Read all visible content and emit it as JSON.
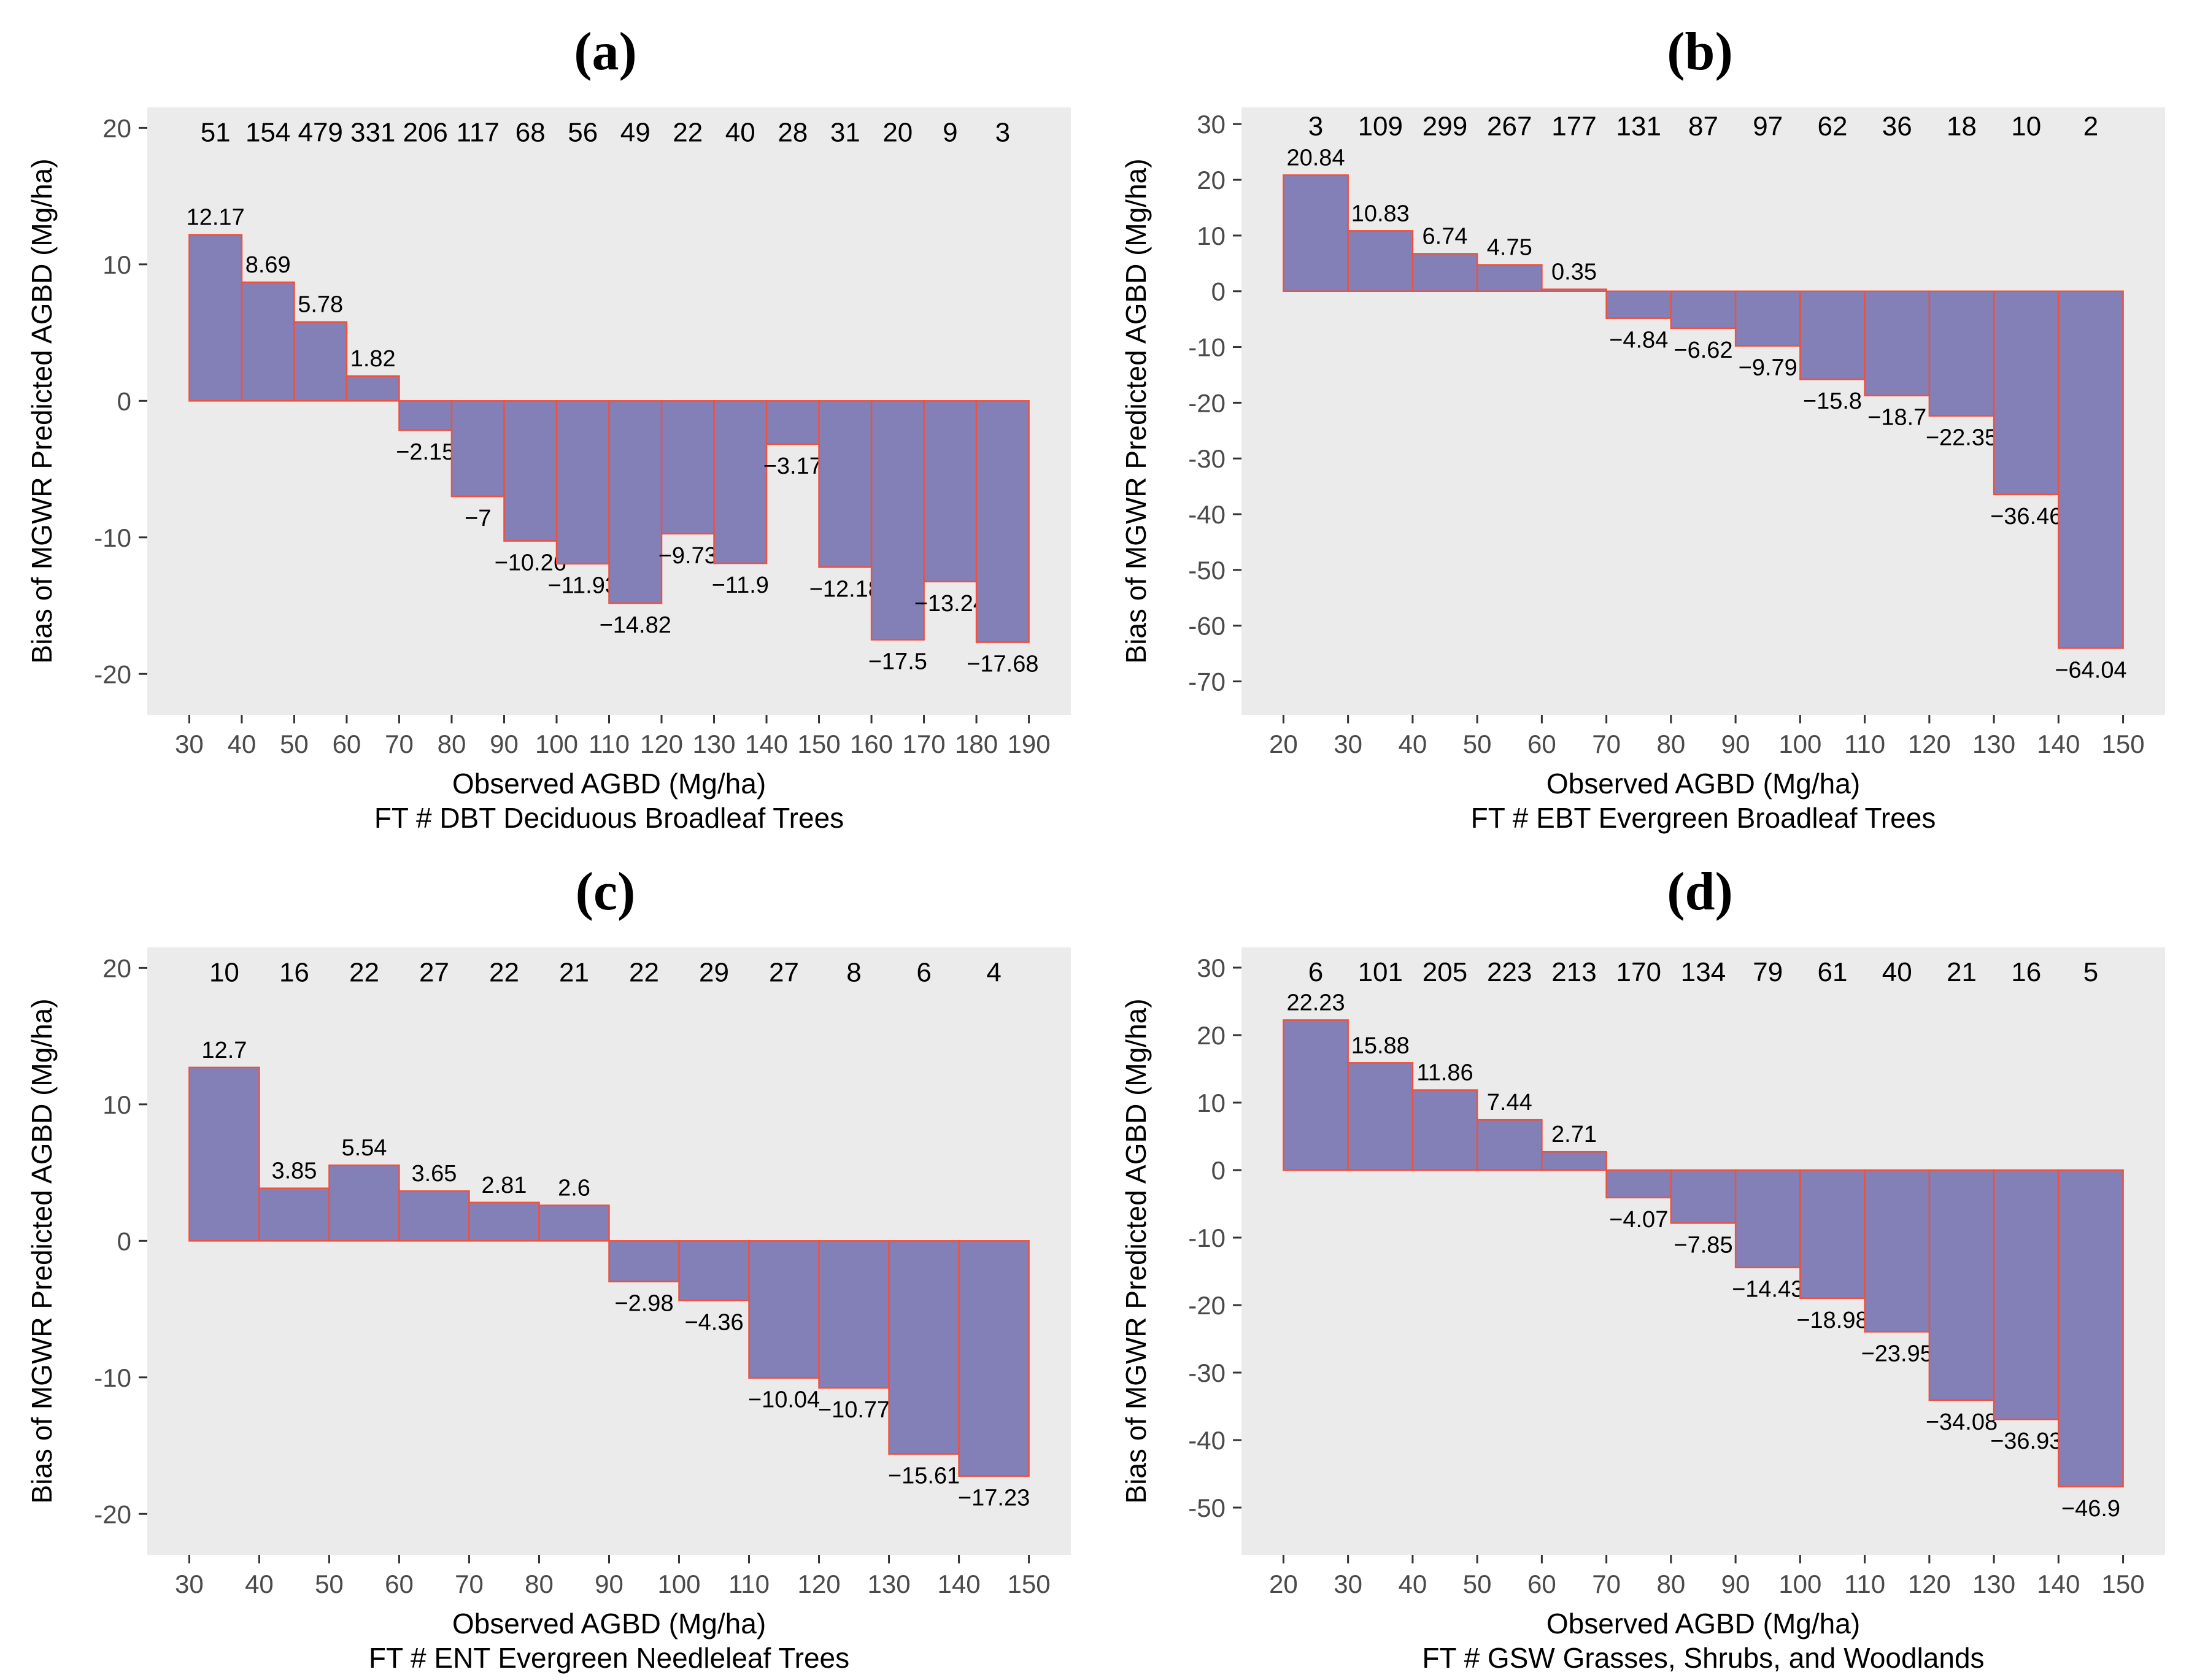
{
  "colors": {
    "bar_fill": "#8380B8",
    "bar_stroke": "#F0503C",
    "panel_bg": "#EBEBEB",
    "axis_text": "#4A4A4A",
    "tick": "#333333",
    "label_text": "#000000"
  },
  "chart_data": [
    {
      "type": "bar",
      "panel_label": "(a)",
      "ylabel": "Bias of MGWR Predicted AGBD (Mg/ha)",
      "xlabel": "Observed AGBD (Mg/ha)",
      "xlabel2": "FT # DBT Deciduous Broadleaf Trees",
      "bin_start": 30,
      "bin_width": 10,
      "bin_edges": [
        30,
        40,
        50,
        60,
        70,
        80,
        90,
        100,
        110,
        120,
        130,
        140,
        150,
        160,
        170,
        180,
        190
      ],
      "counts": [
        51,
        154,
        479,
        331,
        206,
        117,
        68,
        56,
        49,
        22,
        40,
        28,
        31,
        20,
        9,
        3
      ],
      "values": [
        12.17,
        8.69,
        5.78,
        1.82,
        -2.15,
        -7,
        -10.26,
        -11.93,
        -14.82,
        -9.73,
        -11.9,
        -3.17,
        -12.18,
        -17.5,
        -13.24,
        -17.68
      ],
      "value_labels": [
        "12.17",
        "8.69",
        "5.78",
        "1.82",
        "−2.15",
        "−7",
        "−10.26",
        "−11.93",
        "−14.82",
        "−9.73",
        "−11.9",
        "−3.17",
        "−12.18",
        "−17.5",
        "−13.24",
        "−17.68"
      ],
      "x_ticks": [
        30,
        40,
        50,
        60,
        70,
        80,
        90,
        100,
        110,
        120,
        130,
        140,
        150,
        160,
        170,
        180,
        190
      ],
      "y_ticks": [
        20,
        10,
        0,
        -10,
        -20
      ],
      "x_domain": [
        22,
        198
      ],
      "y_domain": [
        -23,
        21.5
      ],
      "counts_y": 19,
      "grid": false
    },
    {
      "type": "bar",
      "panel_label": "(b)",
      "ylabel": "Bias of MGWR Predicted AGBD (Mg/ha)",
      "xlabel": "Observed AGBD (Mg/ha)",
      "xlabel2": "FT # EBT Evergreen Broadleaf Trees",
      "bin_start": 20,
      "bin_width": 10,
      "bin_edges": [
        20,
        30,
        40,
        50,
        60,
        70,
        80,
        90,
        100,
        110,
        120,
        130,
        140,
        150
      ],
      "counts": [
        3,
        109,
        299,
        267,
        177,
        131,
        87,
        97,
        62,
        36,
        18,
        10,
        2
      ],
      "values": [
        20.84,
        10.83,
        6.74,
        4.75,
        0.35,
        -4.84,
        -6.62,
        -9.79,
        -15.8,
        -18.7,
        -22.35,
        -36.46,
        -64.04
      ],
      "value_labels": [
        "20.84",
        "10.83",
        "6.74",
        "4.75",
        "0.35",
        "−4.84",
        "−6.62",
        "−9.79",
        "−15.8",
        "−18.7",
        "−22.35",
        "−36.46",
        "−64.04"
      ],
      "x_ticks": [
        20,
        30,
        40,
        50,
        60,
        70,
        80,
        90,
        100,
        110,
        120,
        130,
        140,
        150
      ],
      "y_ticks": [
        30,
        20,
        10,
        0,
        -10,
        -20,
        -30,
        -40,
        -50,
        -60,
        -70
      ],
      "x_domain": [
        13.5,
        156.5
      ],
      "y_domain": [
        -76,
        33
      ],
      "counts_y": 28,
      "grid": false
    },
    {
      "type": "bar",
      "panel_label": "(c)",
      "ylabel": "Bias of MGWR Predicted AGBD (Mg/ha)",
      "xlabel": "Observed AGBD (Mg/ha)",
      "xlabel2": "FT # ENT Evergreen Needleleaf Trees",
      "bin_start": 30,
      "bin_width": 10,
      "bin_edges": [
        30,
        40,
        50,
        60,
        70,
        80,
        90,
        100,
        110,
        120,
        130,
        140,
        150
      ],
      "counts": [
        10,
        16,
        22,
        27,
        22,
        21,
        22,
        29,
        27,
        8,
        6,
        4
      ],
      "values": [
        12.7,
        3.85,
        5.54,
        3.65,
        2.81,
        2.6,
        -2.98,
        -4.36,
        -10.04,
        -10.77,
        -15.61,
        -17.23
      ],
      "value_labels": [
        "12.7",
        "3.85",
        "5.54",
        "3.65",
        "2.81",
        "2.6",
        "−2.98",
        "−4.36",
        "−10.04",
        "−10.77",
        "−15.61",
        "−17.23"
      ],
      "x_ticks": [
        30,
        40,
        50,
        60,
        70,
        80,
        90,
        100,
        110,
        120,
        130,
        140,
        150
      ],
      "y_ticks": [
        20,
        10,
        0,
        -10,
        -20
      ],
      "x_domain": [
        24,
        156
      ],
      "y_domain": [
        -23,
        21.5
      ],
      "counts_y": 19,
      "grid": false
    },
    {
      "type": "bar",
      "panel_label": "(d)",
      "ylabel": "Bias of MGWR Predicted AGBD (Mg/ha)",
      "xlabel": "Observed AGBD (Mg/ha)",
      "xlabel2": "FT # GSW Grasses, Shrubs, and Woodlands",
      "bin_start": 20,
      "bin_width": 10,
      "bin_edges": [
        20,
        30,
        40,
        50,
        60,
        70,
        80,
        90,
        100,
        110,
        120,
        130,
        140,
        150
      ],
      "counts": [
        6,
        101,
        205,
        223,
        213,
        170,
        134,
        79,
        61,
        40,
        21,
        16,
        5
      ],
      "values": [
        22.23,
        15.88,
        11.86,
        7.44,
        2.71,
        -4.07,
        -7.85,
        -14.43,
        -18.98,
        -23.95,
        -34.08,
        -36.93,
        -46.9
      ],
      "value_labels": [
        "22.23",
        "15.88",
        "11.86",
        "7.44",
        "2.71",
        "−4.07",
        "−7.85",
        "−14.43",
        "−18.98",
        "−23.95",
        "−34.08",
        "−36.93",
        "−46.9"
      ],
      "x_ticks": [
        20,
        30,
        40,
        50,
        60,
        70,
        80,
        90,
        100,
        110,
        120,
        130,
        140,
        150
      ],
      "y_ticks": [
        30,
        20,
        10,
        0,
        -10,
        -20,
        -30,
        -40,
        -50
      ],
      "x_domain": [
        13.5,
        156.5
      ],
      "y_domain": [
        -57,
        33
      ],
      "counts_y": 28,
      "grid": false
    }
  ]
}
